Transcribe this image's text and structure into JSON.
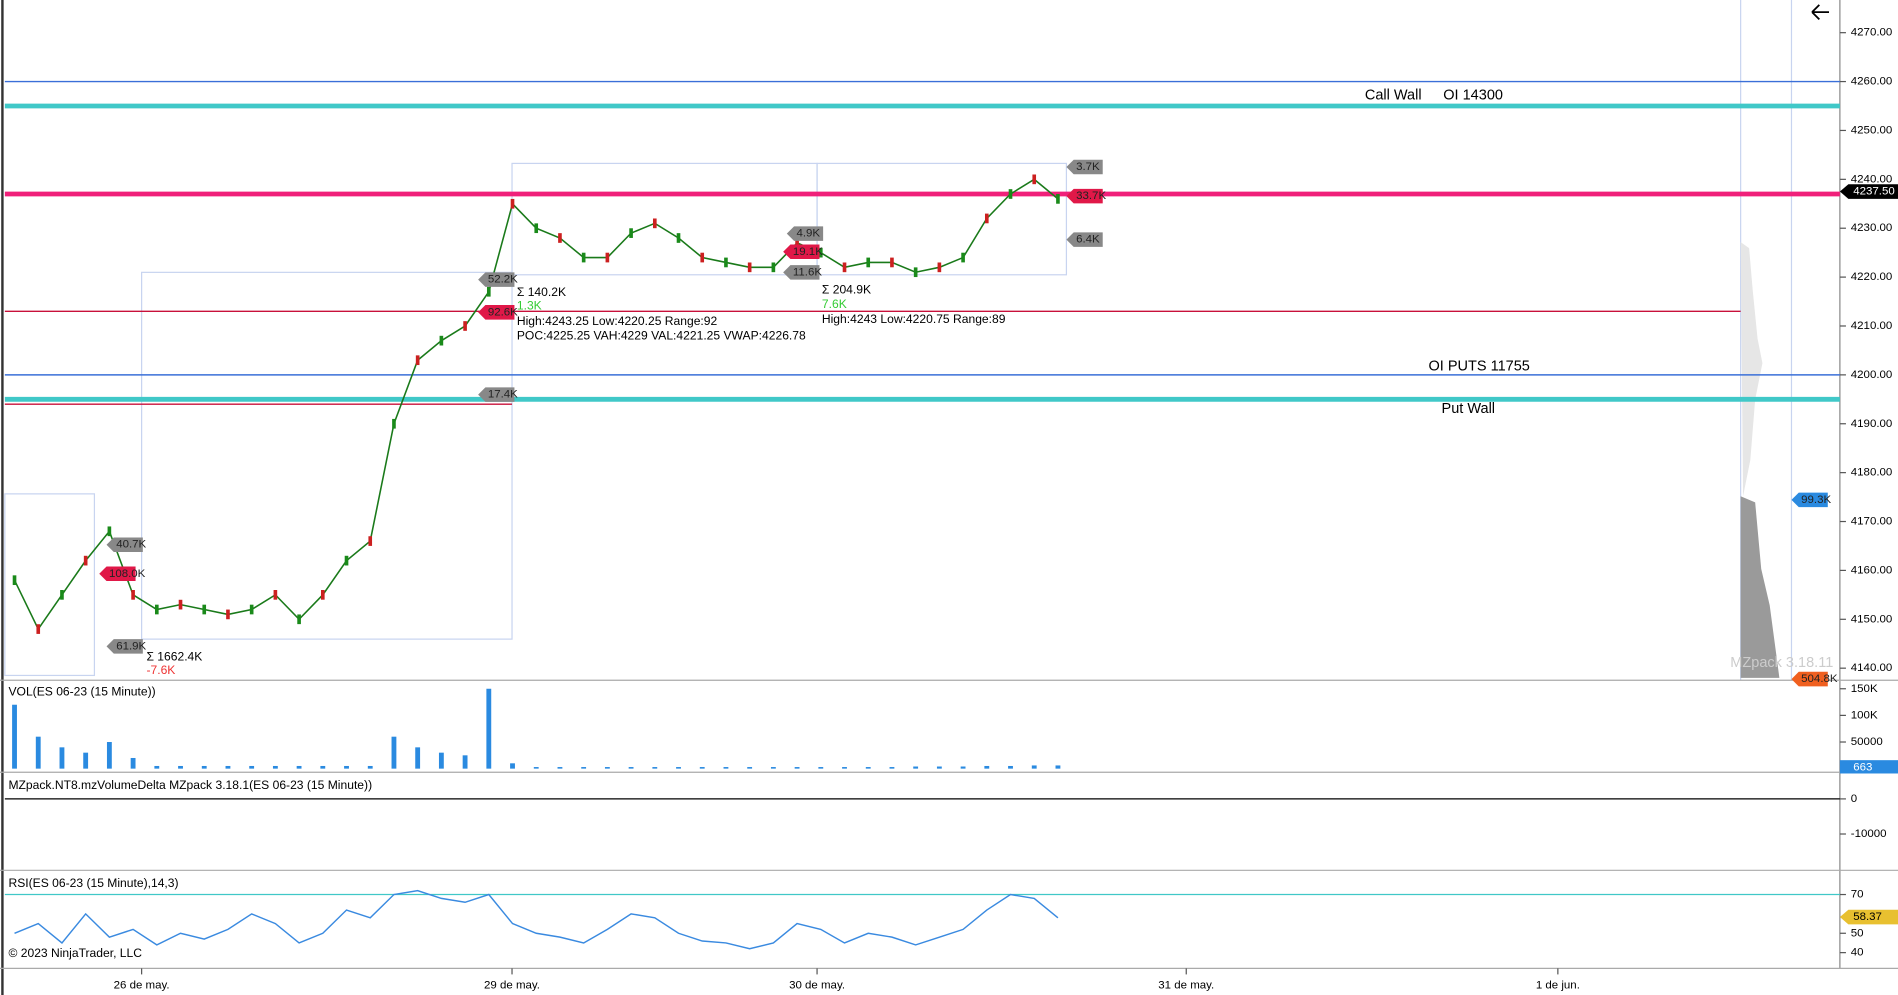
{
  "window": {
    "copyright": "© 2023 NinjaTrader, LLC",
    "watermark": "MZpack 3.18.11"
  },
  "price_pane": {
    "ylim": [
      4140,
      4270
    ],
    "yticks": [
      {
        "value": 4270,
        "label": "4270.00"
      },
      {
        "value": 4260,
        "label": "4260.00"
      },
      {
        "value": 4250,
        "label": "4250.00"
      },
      {
        "value": 4240,
        "label": "4240.00"
      },
      {
        "value": 4230,
        "label": "4230.00"
      },
      {
        "value": 4220,
        "label": "4220.00"
      },
      {
        "value": 4210,
        "label": "4210.00"
      },
      {
        "value": 4200,
        "label": "4200.00"
      },
      {
        "value": 4190,
        "label": "4190.00"
      },
      {
        "value": 4180,
        "label": "4180.00"
      },
      {
        "value": 4170,
        "label": "4170.00"
      },
      {
        "value": 4160,
        "label": "4160.00"
      },
      {
        "value": 4150,
        "label": "4150.00"
      },
      {
        "value": 4140,
        "label": "4140.00"
      }
    ],
    "last_price": {
      "value": 4237.5,
      "label": "4237.50"
    },
    "closes": [
      4158,
      4148,
      4155,
      4162,
      4168,
      4155,
      4152,
      4153,
      4152,
      4151,
      4152,
      4155,
      4150,
      4155,
      4162,
      4166,
      4190,
      4203,
      4207,
      4210,
      4217,
      4235,
      4230,
      4228,
      4224,
      4224,
      4229,
      4231,
      4228,
      4224,
      4223,
      4222,
      4222,
      4227,
      4225,
      4222,
      4223,
      4223,
      4221,
      4222,
      4224,
      4232,
      4237,
      4240,
      4236
    ],
    "levels": [
      {
        "value": 4260,
        "color": "#3a6fd8",
        "style": "thin"
      },
      {
        "value": 4255,
        "color": "#40c8c8",
        "style": "thick"
      },
      {
        "value": 4237,
        "color": "#f0207a",
        "style": "thick"
      },
      {
        "value": 4213,
        "color": "#c8103a",
        "style": "thin"
      },
      {
        "value": 4200,
        "color": "#3a6fd8",
        "style": "thin"
      },
      {
        "value": 4195,
        "color": "#40c8c8",
        "style": "thick"
      },
      {
        "value": 4194,
        "color": "#c8103a",
        "style": "thin"
      }
    ],
    "level_labels": [
      "Call Wall",
      "OI 14300",
      "OI PUTS 11755",
      "Put Wall"
    ],
    "annotations": [
      "Σ 140.2K",
      "1.3K",
      "High:4243.25 Low:4220.25 Range:92",
      "POC:4225.25 VAH:4229 VAL:4221.25 VWAP:4226.78",
      "Σ 204.9K",
      "7.6K",
      "High:4243 Low:4220.75 Range:89",
      "Σ 1662.4K",
      "-7.6K"
    ],
    "badges": [
      {
        "label": "52.2K",
        "color": "gray"
      },
      {
        "label": "92.6K",
        "color": "red"
      },
      {
        "label": "17.4K",
        "color": "gray"
      },
      {
        "label": "40.7K",
        "color": "gray"
      },
      {
        "label": "108.0K",
        "color": "red"
      },
      {
        "label": "61.9K",
        "color": "gray"
      },
      {
        "label": "4.9K",
        "color": "gray"
      },
      {
        "label": "19.1K",
        "color": "red"
      },
      {
        "label": "11.6K",
        "color": "gray"
      },
      {
        "label": "3.7K",
        "color": "gray"
      },
      {
        "label": "33.7K",
        "color": "red"
      },
      {
        "label": "6.4K",
        "color": "gray"
      },
      {
        "label": "99.3K",
        "color": "blue"
      },
      {
        "label": "504.8K",
        "color": "orange"
      }
    ]
  },
  "volume_pane": {
    "title": "VOL(ES 06-23 (15 Minute))",
    "ylim": [
      0,
      150000
    ],
    "yticks": [
      {
        "value": 150000,
        "label": "150K"
      },
      {
        "value": 100000,
        "label": "100K"
      },
      50000
    ],
    "last": 663,
    "values": [
      120000,
      60000,
      40000,
      30000,
      50000,
      20000,
      5000,
      5000,
      5000,
      5000,
      5000,
      5000,
      5000,
      5000,
      5000,
      5000,
      60000,
      40000,
      30000,
      25000,
      150000,
      10000,
      3000,
      3000,
      3000,
      3000,
      3000,
      3000,
      3000,
      3000,
      3000,
      3000,
      3000,
      3000,
      3000,
      3000,
      3000,
      3000,
      4000,
      4000,
      4000,
      5000,
      5000,
      6000,
      6000
    ]
  },
  "delta_pane": {
    "title": "MZpack.NT8.mzVolumeDelta MZpack 3.18.1(ES 06-23 (15 Minute))",
    "yticks": [
      0,
      -10000
    ]
  },
  "rsi_pane": {
    "title": "RSI(ES 06-23 (15 Minute),14,3)",
    "yticks": [
      70,
      50,
      40
    ],
    "last": 58.37,
    "values": [
      50,
      55,
      45,
      60,
      48,
      52,
      44,
      50,
      47,
      52,
      60,
      55,
      45,
      50,
      62,
      58,
      70,
      72,
      68,
      66,
      70,
      55,
      50,
      48,
      45,
      52,
      60,
      58,
      50,
      46,
      45,
      42,
      45,
      55,
      52,
      45,
      50,
      48,
      44,
      48,
      52,
      62,
      70,
      68,
      58
    ]
  },
  "time_axis": {
    "labels": [
      "26 de may.",
      "29 de may.",
      "30 de may.",
      "31 de may.",
      "1 de jun."
    ]
  }
}
